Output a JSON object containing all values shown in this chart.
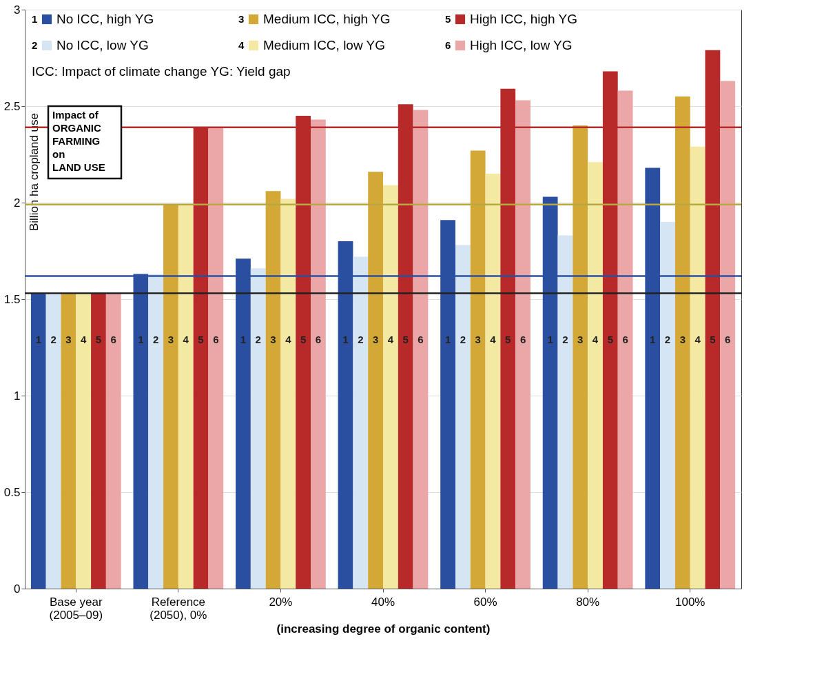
{
  "chart_data": {
    "type": "bar",
    "ylabel": "Billion ha cropland use",
    "xlabel": "(increasing degree of organic content)",
    "categories": [
      "Base year\n(2005–09)",
      "Reference\n(2050), 0%",
      "20%",
      "40%",
      "60%",
      "80%",
      "100%"
    ],
    "series": [
      {
        "name": "No ICC, high YG",
        "color": "#2a4fa0",
        "values": [
          1.53,
          1.63,
          1.71,
          1.8,
          1.91,
          2.03,
          2.18
        ]
      },
      {
        "name": "No ICC, low YG",
        "color": "#d6e5f3",
        "values": [
          1.53,
          1.63,
          1.66,
          1.72,
          1.78,
          1.83,
          1.9
        ]
      },
      {
        "name": "Medium ICC, high YG",
        "color": "#d4a836",
        "values": [
          1.53,
          1.99,
          2.06,
          2.16,
          2.27,
          2.4,
          2.55
        ]
      },
      {
        "name": "Medium ICC, low YG",
        "color": "#f3e9a2",
        "values": [
          1.53,
          1.99,
          2.02,
          2.09,
          2.15,
          2.21,
          2.29
        ]
      },
      {
        "name": "High ICC, high YG",
        "color": "#b82a2a",
        "values": [
          1.53,
          2.39,
          2.45,
          2.51,
          2.59,
          2.68,
          2.79
        ]
      },
      {
        "name": "High ICC, low YG",
        "color": "#eba7a7",
        "values": [
          1.53,
          2.39,
          2.43,
          2.48,
          2.53,
          2.58,
          2.63
        ]
      }
    ],
    "ylim": [
      0,
      3
    ],
    "yticks": [
      0,
      0.5,
      1,
      1.5,
      2,
      2.5,
      3
    ],
    "grid": "y",
    "legend": "top left",
    "ref_lines": [
      {
        "axis": "y",
        "value": 2.39,
        "color": "#b52a2a"
      },
      {
        "axis": "y",
        "value": 1.99,
        "color": "#b8a840"
      },
      {
        "axis": "y",
        "value": 1.62,
        "color": "#2a4fa0"
      },
      {
        "axis": "y",
        "value": 1.53,
        "color": "#222222"
      }
    ],
    "annotations": [
      "ICC: Impact of climate change YG: Yield gap",
      "Impact of\nORGANIC\nFARMING\non\nLAND USE",
      "1",
      "2",
      "3",
      "4",
      "5",
      "6",
      {
        "text": "1 2 3 4 5 6",
        "x": "Base year\n(2005–09)"
      },
      {
        "text": "1 2 3 4 5 6",
        "x": "Reference\n(2050), 0%"
      },
      {
        "text": "1 2 3 4 5 6",
        "x": "20%"
      },
      {
        "text": "1 2 3 4 5 6",
        "x": "40%"
      },
      {
        "text": "1 2 3 4 5 6",
        "x": "60%"
      },
      {
        "text": "1 2 3 4 5 6",
        "x": "80%"
      },
      {
        "text": "1 2 3 4 5 6",
        "x": "100%"
      }
    ]
  }
}
